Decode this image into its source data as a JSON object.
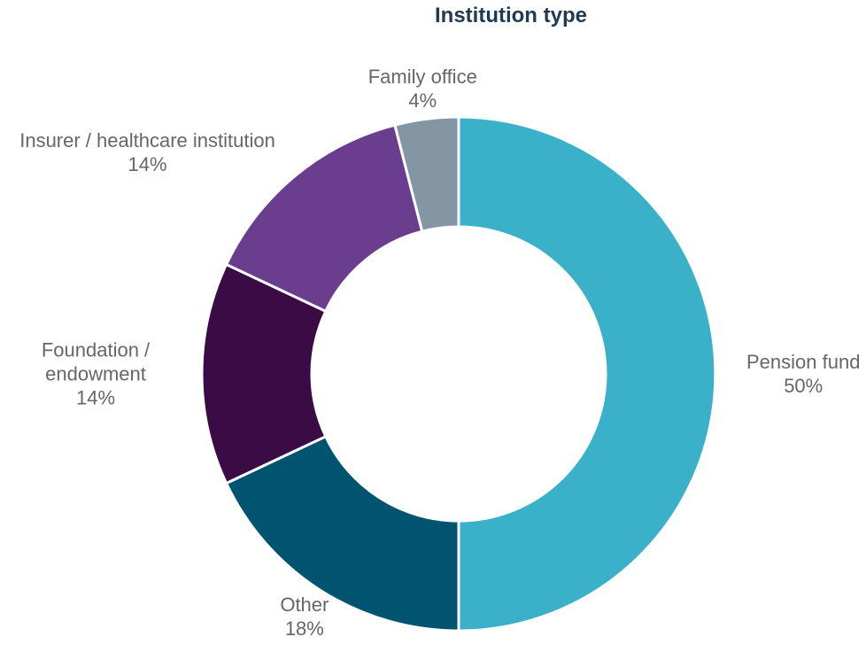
{
  "chart_data": {
    "type": "pie",
    "title": "Institution type",
    "categories": [
      "Pension fund",
      "Other",
      "Foundation / endowment",
      "Insurer / healthcare institution",
      "Family office"
    ],
    "values": [
      50,
      18,
      14,
      14,
      4
    ],
    "value_labels": [
      "50%",
      "18%",
      "14%",
      "14%",
      "4%"
    ],
    "colors": [
      "#3bb1c9",
      "#00546f",
      "#3a0b45",
      "#6a3d8f",
      "#8496a3"
    ]
  }
}
